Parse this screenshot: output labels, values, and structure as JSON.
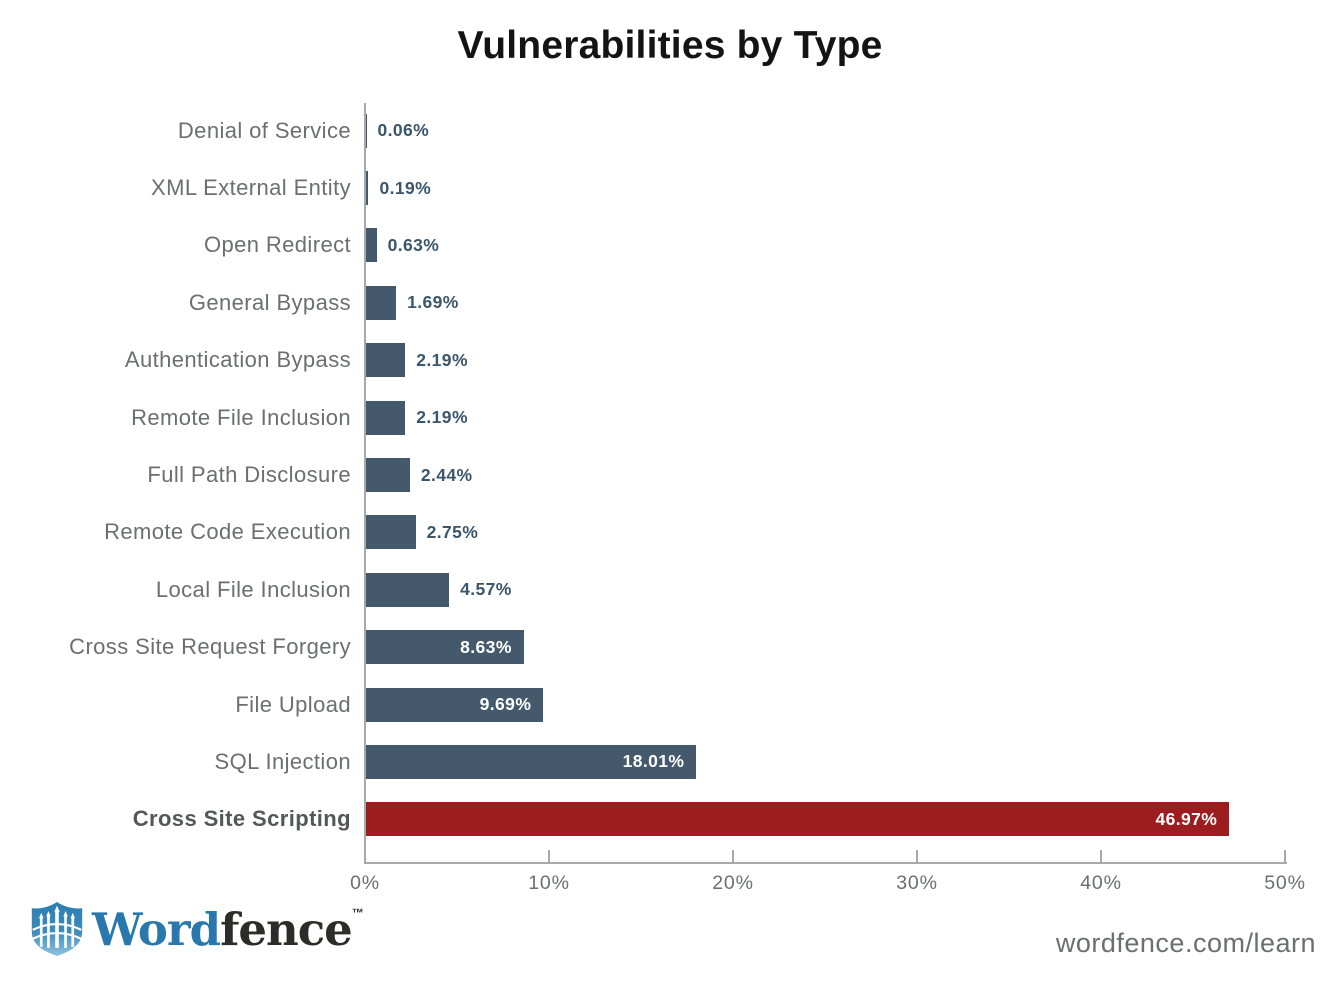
{
  "title": "Vulnerabilities by Type",
  "chart_data": {
    "type": "bar",
    "orientation": "horizontal",
    "title": "Vulnerabilities by Type",
    "categories": [
      "Denial of Service",
      "XML External Entity",
      "Open Redirect",
      "General Bypass",
      "Authentication Bypass",
      "Remote File Inclusion",
      "Full Path Disclosure",
      "Remote Code Execution",
      "Local File Inclusion",
      "Cross Site Request Forgery",
      "File Upload",
      "SQL Injection",
      "Cross Site Scripting"
    ],
    "values": [
      0.06,
      0.19,
      0.63,
      1.69,
      2.19,
      2.19,
      2.44,
      2.75,
      4.57,
      8.63,
      9.69,
      18.01,
      46.97
    ],
    "value_labels": [
      "0.06%",
      "0.19%",
      "0.63%",
      "1.69%",
      "2.19%",
      "2.19%",
      "2.44%",
      "2.75%",
      "4.57%",
      "8.63%",
      "9.69%",
      "18.01%",
      "46.97%"
    ],
    "xlabel": "",
    "ylabel": "",
    "xlim": [
      0,
      50
    ],
    "x_ticks": [
      "0%",
      "10%",
      "20%",
      "30%",
      "40%",
      "50%"
    ],
    "grid": false,
    "legend": false,
    "bar_color": "#44596C",
    "highlight_category": "Cross Site Scripting",
    "highlight_color": "#9C1C20",
    "value_label_color_outside": "#3A566B",
    "value_label_color_inside": "#FFFFFF",
    "inside_label_threshold": 8
  },
  "footer": {
    "logo_icon": "wordfence-shield-icon",
    "logo_word": "Word",
    "logo_fence": "fence",
    "logo_tm": "TM",
    "url": "wordfence.com/learn"
  }
}
